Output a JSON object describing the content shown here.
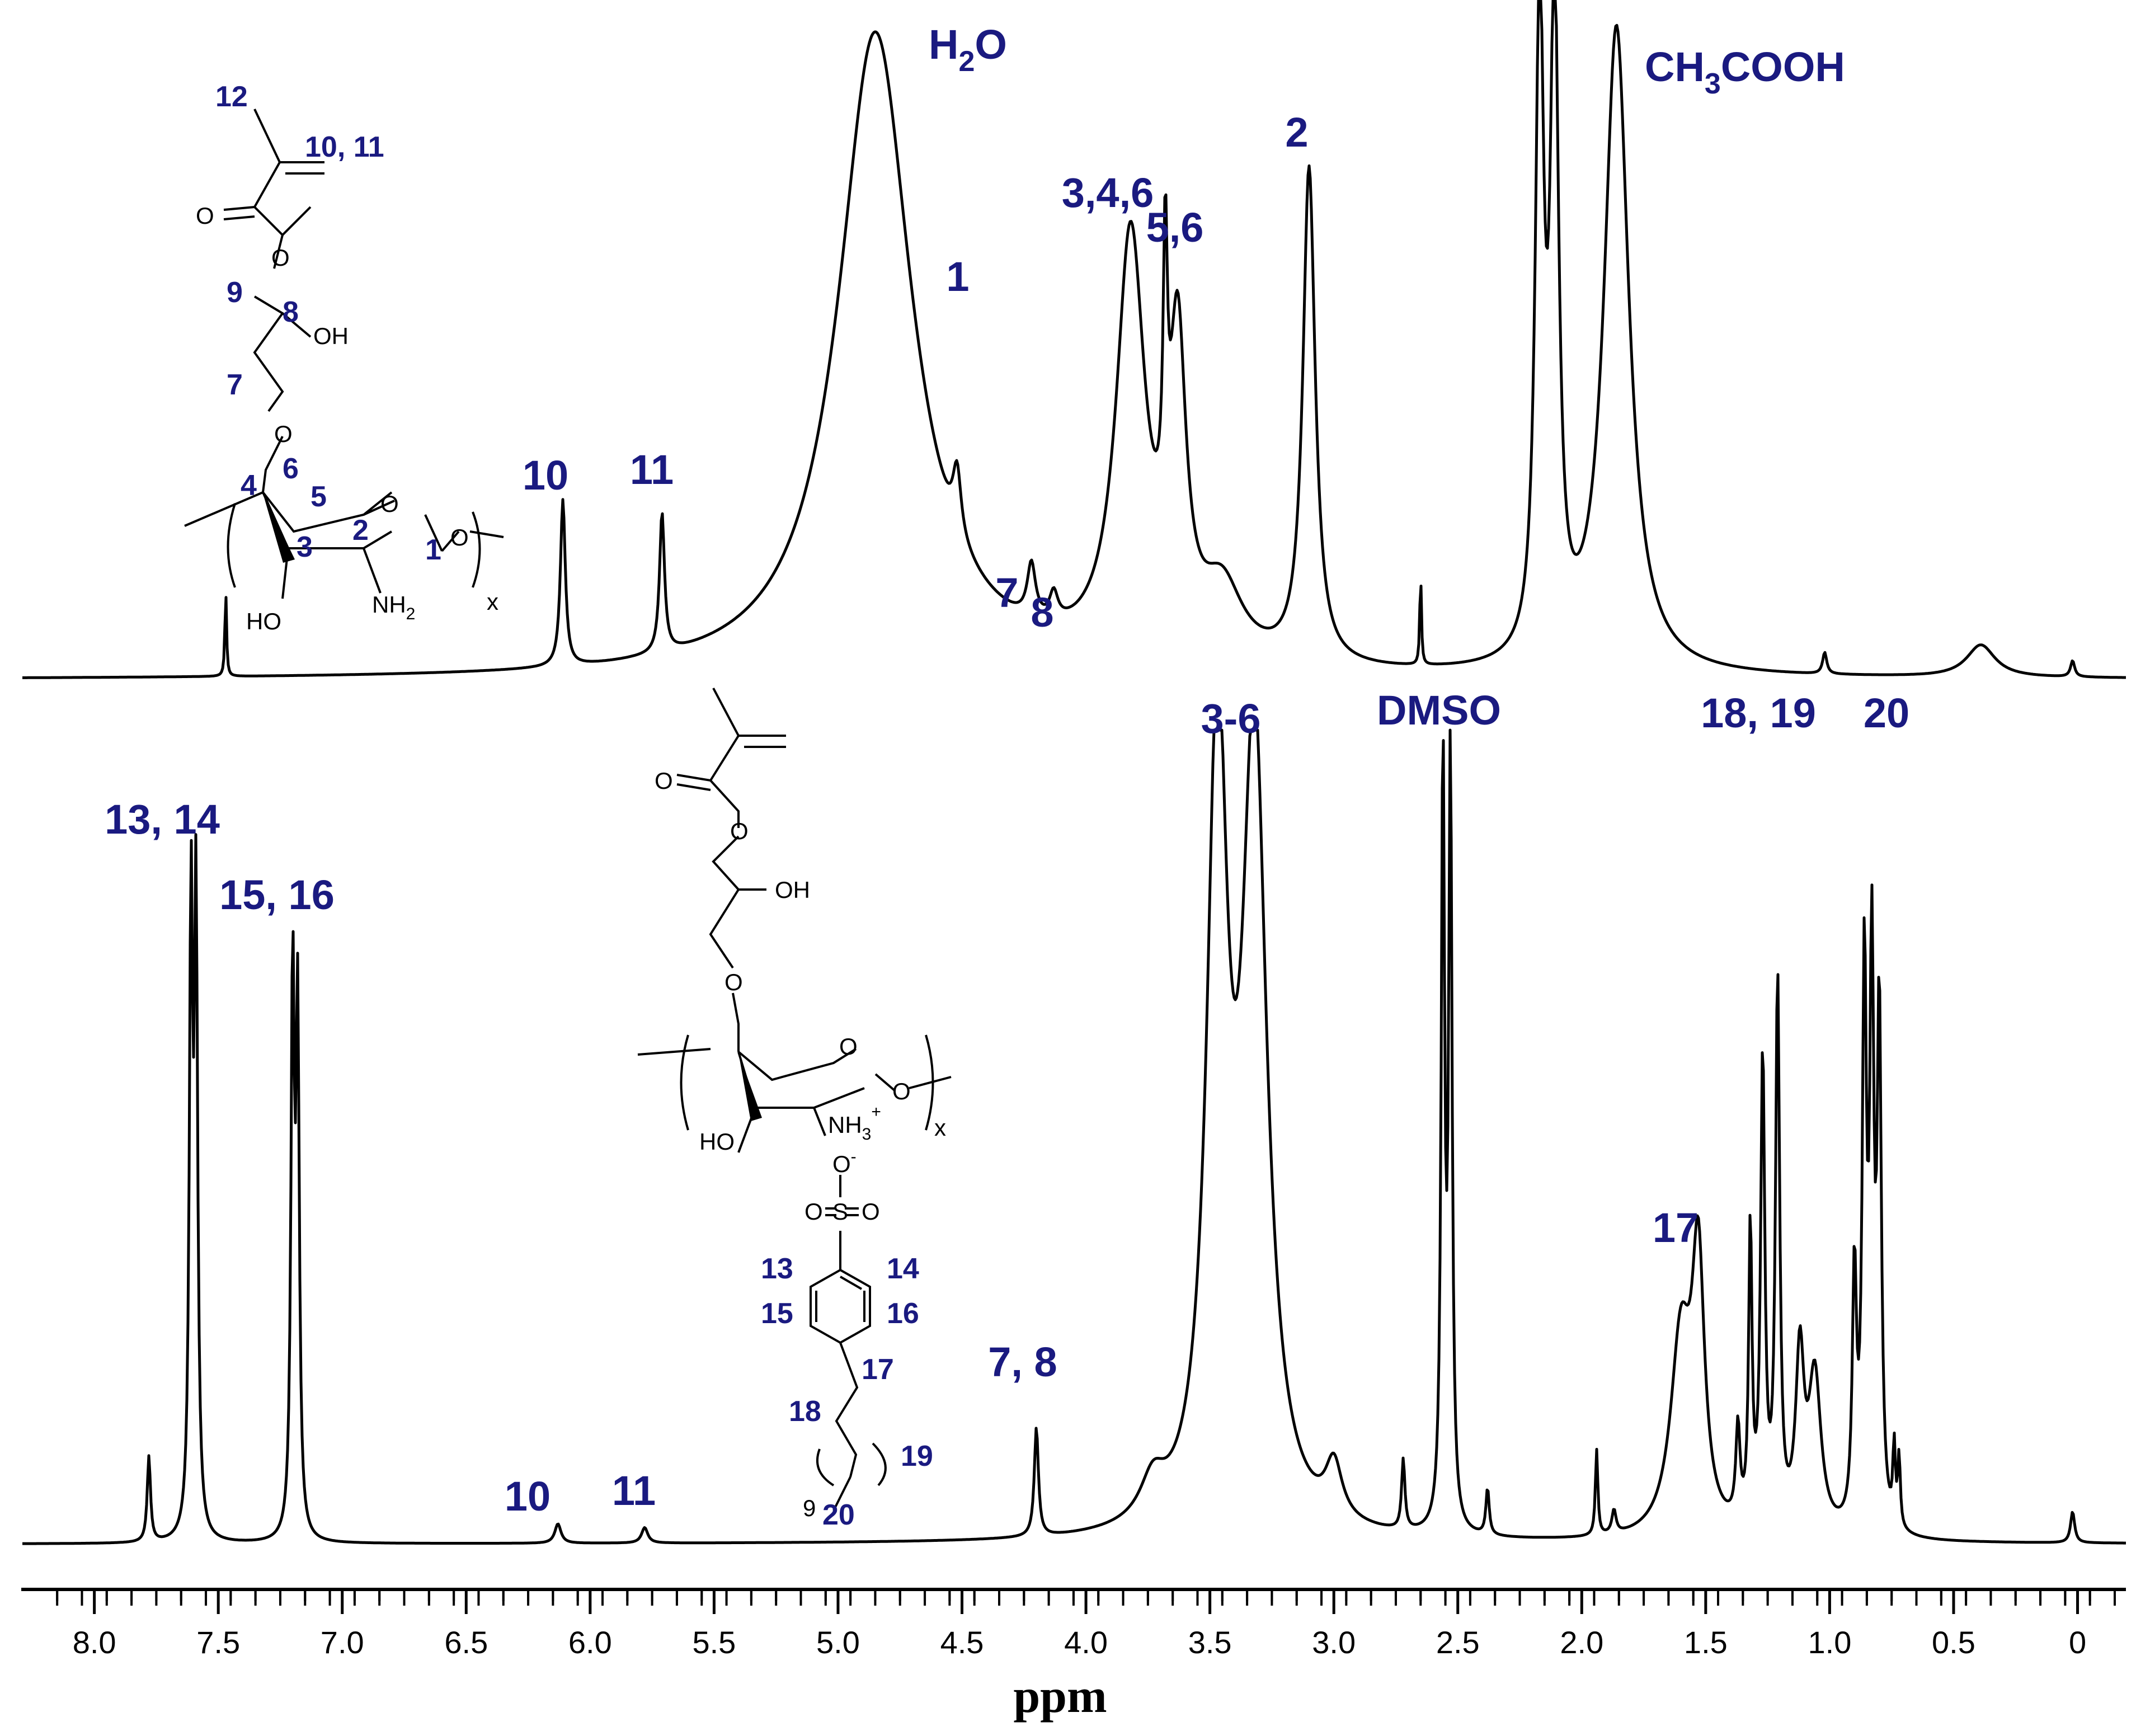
{
  "colors": {
    "label": "#1a1a80",
    "trace": "#000000",
    "structure": "#000000"
  },
  "chart_data": {
    "type": "line",
    "xlabel": "ppm",
    "xlim": [
      8.2,
      -0.15
    ],
    "x_reversed": true,
    "x_ticks": [
      "8.0",
      "7.5",
      "7.0",
      "6.5",
      "6.0",
      "5.5",
      "5.0",
      "4.5",
      "4.0",
      "3.5",
      "3.0",
      "2.5",
      "2.0",
      "1.5",
      "1.0",
      "0.5",
      "0"
    ],
    "x_tick_values": [
      8.0,
      7.5,
      7.0,
      6.5,
      6.0,
      5.5,
      5.0,
      4.5,
      4.0,
      3.5,
      3.0,
      2.5,
      2.0,
      1.5,
      1.0,
      0.5,
      0.0
    ],
    "grid": false,
    "legend": "none",
    "series": [
      {
        "id": "top",
        "peaks": [
          {
            "ppm": 7.47,
            "height": 0.16,
            "width": 0.004
          },
          {
            "ppm": 6.11,
            "height": 0.31,
            "width": 0.012
          },
          {
            "ppm": 5.71,
            "height": 0.26,
            "width": 0.012
          },
          {
            "ppm": 4.85,
            "height": 1.2,
            "width": 0.18
          },
          {
            "ppm": 4.52,
            "height": 0.12,
            "width": 0.02
          },
          {
            "ppm": 4.22,
            "height": 0.1,
            "width": 0.02
          },
          {
            "ppm": 4.13,
            "height": 0.05,
            "width": 0.02
          },
          {
            "ppm": 3.82,
            "height": 0.78,
            "width": 0.07
          },
          {
            "ppm": 3.68,
            "height": 0.5,
            "width": 0.01
          },
          {
            "ppm": 3.63,
            "height": 0.55,
            "width": 0.04
          },
          {
            "ppm": 3.45,
            "height": 0.13,
            "width": 0.1
          },
          {
            "ppm": 3.1,
            "height": 0.92,
            "width": 0.03
          },
          {
            "ppm": 2.65,
            "height": 0.17,
            "width": 0.004
          },
          {
            "ppm": 2.17,
            "height": 1.2,
            "width": 0.02
          },
          {
            "ppm": 2.11,
            "height": 1.2,
            "width": 0.02
          },
          {
            "ppm": 1.86,
            "height": 1.2,
            "width": 0.06
          },
          {
            "ppm": 1.02,
            "height": 0.04,
            "width": 0.01
          },
          {
            "ppm": 0.39,
            "height": 0.06,
            "width": 0.07
          },
          {
            "ppm": 0.02,
            "height": 0.03,
            "width": 0.01
          }
        ]
      },
      {
        "id": "bottom",
        "peaks": [
          {
            "ppm": 7.78,
            "height": 0.11,
            "width": 0.008
          },
          {
            "ppm": 7.61,
            "height": 0.8,
            "width": 0.008
          },
          {
            "ppm": 7.59,
            "height": 0.8,
            "width": 0.008
          },
          {
            "ppm": 7.2,
            "height": 0.72,
            "width": 0.008
          },
          {
            "ppm": 7.18,
            "height": 0.66,
            "width": 0.008
          },
          {
            "ppm": 6.13,
            "height": 0.025,
            "width": 0.015
          },
          {
            "ppm": 5.78,
            "height": 0.02,
            "width": 0.015
          },
          {
            "ppm": 4.2,
            "height": 0.14,
            "width": 0.01
          },
          {
            "ppm": 3.73,
            "height": 0.05,
            "width": 0.06
          },
          {
            "ppm": 3.47,
            "height": 1.0,
            "width": 0.05
          },
          {
            "ppm": 3.32,
            "height": 1.0,
            "width": 0.06
          },
          {
            "ppm": 3.0,
            "height": 0.07,
            "width": 0.04
          },
          {
            "ppm": 2.72,
            "height": 0.09,
            "width": 0.008
          },
          {
            "ppm": 2.56,
            "height": 1.0,
            "width": 0.008
          },
          {
            "ppm": 2.53,
            "height": 1.0,
            "width": 0.008
          },
          {
            "ppm": 2.38,
            "height": 0.06,
            "width": 0.008
          },
          {
            "ppm": 1.94,
            "height": 0.11,
            "width": 0.006
          },
          {
            "ppm": 1.87,
            "height": 0.03,
            "width": 0.01
          },
          {
            "ppm": 1.6,
            "height": 0.25,
            "width": 0.05
          },
          {
            "ppm": 1.53,
            "height": 0.33,
            "width": 0.03
          },
          {
            "ppm": 1.37,
            "height": 0.12,
            "width": 0.01
          },
          {
            "ppm": 1.32,
            "height": 0.38,
            "width": 0.008
          },
          {
            "ppm": 1.27,
            "height": 0.6,
            "width": 0.01
          },
          {
            "ppm": 1.21,
            "height": 0.7,
            "width": 0.01
          },
          {
            "ppm": 1.12,
            "height": 0.22,
            "width": 0.02
          },
          {
            "ppm": 1.06,
            "height": 0.2,
            "width": 0.03
          },
          {
            "ppm": 0.9,
            "height": 0.32,
            "width": 0.01
          },
          {
            "ppm": 0.86,
            "height": 0.7,
            "width": 0.01
          },
          {
            "ppm": 0.83,
            "height": 0.7,
            "width": 0.01
          },
          {
            "ppm": 0.8,
            "height": 0.65,
            "width": 0.01
          },
          {
            "ppm": 0.74,
            "height": 0.1,
            "width": 0.006
          },
          {
            "ppm": 0.72,
            "height": 0.09,
            "width": 0.006
          },
          {
            "ppm": 0.02,
            "height": 0.04,
            "width": 0.01
          }
        ]
      }
    ],
    "annotations_top": {
      "h2o": {
        "pre": "H",
        "sub": "2",
        "post": "O"
      },
      "ch3cooh": {
        "pre": "CH",
        "sub": "3",
        "post": "COOH"
      },
      "peak_2": "2",
      "peak_346": "3,4,6",
      "peak_56": "5,6",
      "peak_1": "1",
      "peak_7": "7",
      "peak_8": "8",
      "peak_10": "10",
      "peak_11": "11"
    },
    "annotations_bottom": {
      "peak_1314": "13, 14",
      "peak_1516": "15, 16",
      "peak_3_6": "3-6",
      "dmso": "DMSO",
      "peak_1819": "18, 19",
      "peak_20": "20",
      "peak_17": "17",
      "peak_78": "7, 8",
      "peak_10": "10",
      "peak_11": "11"
    },
    "structure_top": {
      "n12": "12",
      "n1011": "10, 11",
      "n9": "9",
      "n8": "8",
      "n7": "7",
      "n6": "6",
      "n4": "4",
      "n5": "5",
      "n2": "2",
      "n3": "3",
      "n1": "1",
      "o_carbonyl": "O",
      "o_ester": "O",
      "oh_8": "OH",
      "o_ether": "O",
      "o_ring": "O",
      "o_glyco": "O",
      "ho": "HO",
      "nh2": {
        "pre": "NH",
        "sub": "2"
      },
      "x": "x"
    },
    "structure_bottom": {
      "o_carbonyl": "O",
      "o_ester": "O",
      "oh": "OH",
      "o_ether": "O",
      "o_ring": "O",
      "o_glyco": "O",
      "ho": "HO",
      "nh3": {
        "pre": "NH",
        "sub": "3",
        "sup": "+"
      },
      "o_minus": {
        "pre": "O",
        "sup": "-"
      },
      "so3": {
        "o_left": "O",
        "s": "S",
        "o_right": "O"
      },
      "x": "x",
      "n13": "13",
      "n14": "14",
      "n15": "15",
      "n16": "16",
      "n17": "17",
      "n18": "18",
      "n19": "19",
      "n20": "20",
      "n9": "9"
    }
  }
}
